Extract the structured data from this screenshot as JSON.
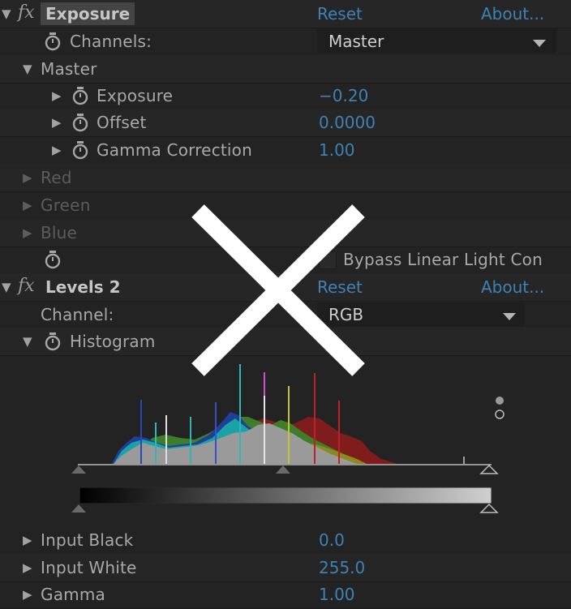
{
  "effects": [
    {
      "name": "Exposure",
      "reset_label": "Reset",
      "about_label": "About...",
      "channels_label": "Channels:",
      "channels_value": "Master",
      "master_group": "Master",
      "params": [
        {
          "label": "Exposure",
          "value": "−0.20"
        },
        {
          "label": "Offset",
          "value": "0.0000"
        },
        {
          "label": "Gamma Correction",
          "value": "1.00"
        }
      ],
      "groups": [
        "Red",
        "Green",
        "Blue"
      ],
      "bypass_label": "Bypass Linear Light Con"
    },
    {
      "name": "Levels 2",
      "reset_label": "Reset",
      "about_label": "About...",
      "channel_label": "Channel:",
      "channel_value": "RGB",
      "histogram_label": "Histogram",
      "params": [
        {
          "label": "Input Black",
          "value": "0.0"
        },
        {
          "label": "Input White",
          "value": "255.0"
        },
        {
          "label": "Gamma",
          "value": "1.00"
        }
      ]
    }
  ],
  "colors": {
    "background": "#232323",
    "value_blue": "#3f82b5",
    "label_gray": "#a9a9a9",
    "overlay_white": "#ffffff"
  },
  "icons": [
    "twirl-down-icon",
    "twirl-right-icon",
    "stopwatch-icon",
    "fx-icon",
    "dropdown-arrow-icon",
    "close-x-icon"
  ]
}
